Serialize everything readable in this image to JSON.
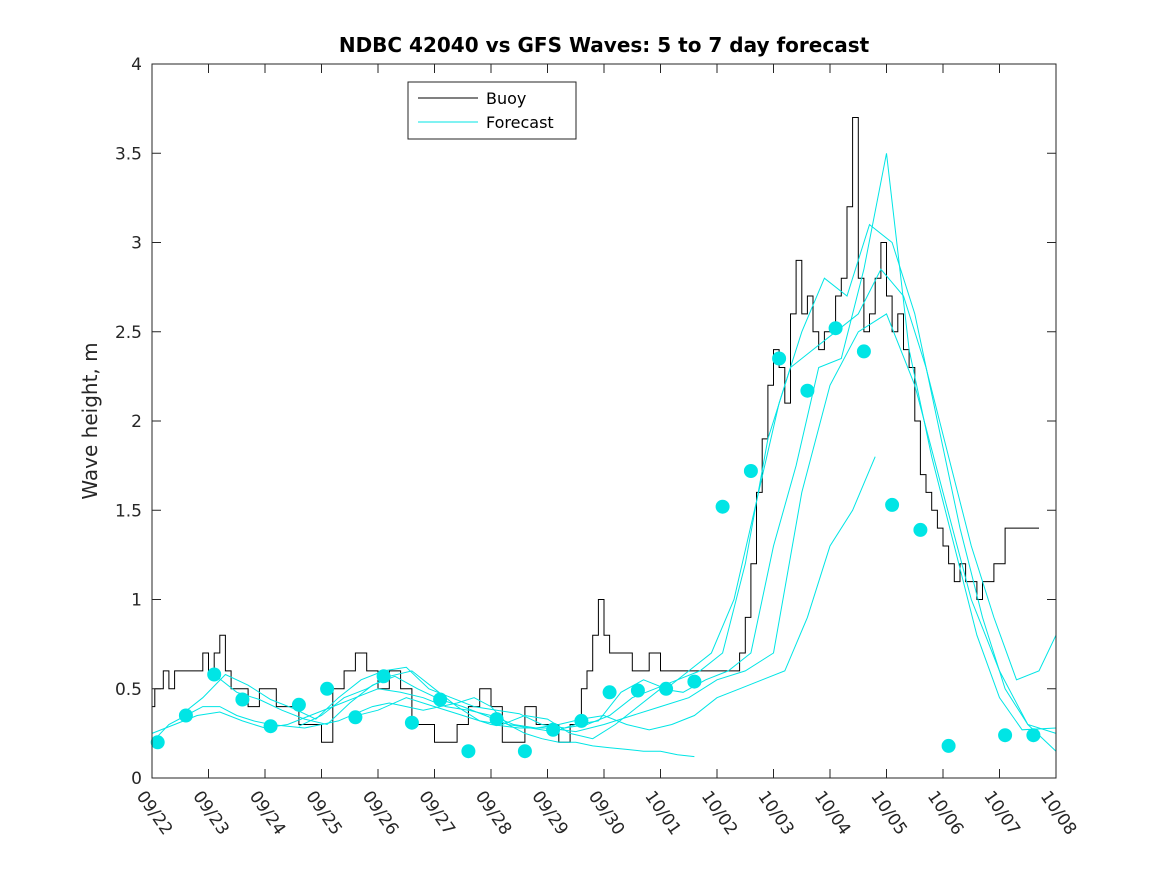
{
  "chart_data": {
    "type": "line",
    "title": "NDBC 42040 vs GFS Waves: 5 to 7 day forecast",
    "xlabel": "",
    "ylabel": "Wave height, m",
    "xlim": [
      0,
      16
    ],
    "ylim": [
      0,
      4
    ],
    "grid": false,
    "legend_position": "top-left",
    "x_tick_values": [
      0,
      1,
      2,
      3,
      4,
      5,
      6,
      7,
      8,
      9,
      10,
      11,
      12,
      13,
      14,
      15,
      16
    ],
    "x_tick_labels": [
      "09/22",
      "09/23",
      "09/24",
      "09/25",
      "09/26",
      "09/27",
      "09/28",
      "09/29",
      "09/30",
      "10/01",
      "10/02",
      "10/03",
      "10/04",
      "10/05",
      "10/06",
      "10/07",
      "10/08"
    ],
    "y_tick_values": [
      0,
      0.5,
      1,
      1.5,
      2,
      2.5,
      3,
      3.5,
      4
    ],
    "y_tick_labels": [
      "0",
      "0.5",
      "1",
      "1.5",
      "2",
      "2.5",
      "3",
      "3.5",
      "4"
    ],
    "x_units": "days since 09/22",
    "legend": [
      {
        "label": "Buoy",
        "color": "#000000"
      },
      {
        "label": "Forecast",
        "color": "#00e5e5"
      }
    ],
    "colors": {
      "buoy": "#000000",
      "forecast": "#00e5e5",
      "marker": "#00e5e5"
    },
    "series": [
      {
        "name": "Buoy",
        "style": "step",
        "x": [
          0,
          0.05,
          0.1,
          0.2,
          0.3,
          0.4,
          0.5,
          0.6,
          0.7,
          0.8,
          0.9,
          1.0,
          1.1,
          1.2,
          1.3,
          1.4,
          1.5,
          1.6,
          1.7,
          1.8,
          1.9,
          2.0,
          2.2,
          2.4,
          2.6,
          2.8,
          3.0,
          3.2,
          3.4,
          3.6,
          3.8,
          4.0,
          4.2,
          4.4,
          4.6,
          4.8,
          5.0,
          5.2,
          5.4,
          5.6,
          5.8,
          6.0,
          6.2,
          6.4,
          6.6,
          6.8,
          7.0,
          7.2,
          7.4,
          7.6,
          7.7,
          7.8,
          7.9,
          8.0,
          8.1,
          8.2,
          8.3,
          8.4,
          8.5,
          8.6,
          8.8,
          9.0,
          9.2,
          9.4,
          9.6,
          9.8,
          10.0,
          10.2,
          10.4,
          10.5,
          10.6,
          10.7,
          10.8,
          10.9,
          11.0,
          11.1,
          11.2,
          11.3,
          11.4,
          11.5,
          11.6,
          11.7,
          11.8,
          11.9,
          12.0,
          12.1,
          12.2,
          12.3,
          12.4,
          12.5,
          12.6,
          12.7,
          12.8,
          12.9,
          13.0,
          13.1,
          13.2,
          13.3,
          13.4,
          13.5,
          13.6,
          13.7,
          13.8,
          13.9,
          14.0,
          14.1,
          14.2,
          14.3,
          14.4,
          14.5,
          14.6,
          14.7,
          14.8,
          14.9,
          15.0,
          15.1,
          15.2,
          15.3,
          15.4,
          15.5,
          15.6,
          15.7
        ],
        "y": [
          0.4,
          0.5,
          0.5,
          0.6,
          0.5,
          0.6,
          0.6,
          0.6,
          0.6,
          0.6,
          0.7,
          0.6,
          0.7,
          0.8,
          0.6,
          0.5,
          0.5,
          0.5,
          0.4,
          0.4,
          0.5,
          0.5,
          0.4,
          0.4,
          0.3,
          0.3,
          0.2,
          0.5,
          0.6,
          0.7,
          0.6,
          0.5,
          0.6,
          0.5,
          0.3,
          0.3,
          0.2,
          0.2,
          0.3,
          0.4,
          0.5,
          0.4,
          0.2,
          0.2,
          0.4,
          0.3,
          0.3,
          0.2,
          0.3,
          0.5,
          0.6,
          0.8,
          1.0,
          0.8,
          0.7,
          0.7,
          0.7,
          0.7,
          0.6,
          0.6,
          0.7,
          0.6,
          0.6,
          0.6,
          0.6,
          0.6,
          0.6,
          0.6,
          0.7,
          0.9,
          1.2,
          1.6,
          1.9,
          2.2,
          2.4,
          2.3,
          2.1,
          2.6,
          2.9,
          2.6,
          2.7,
          2.5,
          2.4,
          2.5,
          2.5,
          2.7,
          2.8,
          3.2,
          3.7,
          2.8,
          2.5,
          2.6,
          2.8,
          3.0,
          2.7,
          2.5,
          2.6,
          2.4,
          2.3,
          2.0,
          1.7,
          1.6,
          1.5,
          1.4,
          1.3,
          1.2,
          1.1,
          1.2,
          1.1,
          1.1,
          1.0,
          1.1,
          1.1,
          1.2,
          1.2,
          1.4,
          1.4,
          1.4,
          1.4,
          1.4,
          1.4,
          1.4
        ]
      },
      {
        "name": "Forecast run 1",
        "x": [
          0,
          0.3,
          0.6,
          0.9,
          1.2,
          1.5,
          1.8,
          2.1,
          2.4,
          2.7,
          3.0,
          3.3,
          3.6,
          3.9,
          4.2,
          4.5,
          4.8,
          5.1,
          5.4,
          5.7,
          6.0,
          6.3,
          6.6,
          6.9,
          7.2,
          7.5,
          7.8,
          8.1,
          8.4,
          8.7,
          9.0,
          9.3,
          9.6
        ],
        "y": [
          0.2,
          0.3,
          0.35,
          0.4,
          0.4,
          0.35,
          0.32,
          0.3,
          0.29,
          0.28,
          0.3,
          0.32,
          0.36,
          0.4,
          0.42,
          0.4,
          0.38,
          0.4,
          0.42,
          0.45,
          0.4,
          0.3,
          0.25,
          0.22,
          0.2,
          0.2,
          0.18,
          0.17,
          0.16,
          0.15,
          0.15,
          0.13,
          0.12
        ]
      },
      {
        "name": "Forecast run 2",
        "x": [
          0,
          0.4,
          0.8,
          1.2,
          1.6,
          2.0,
          2.4,
          2.8,
          3.2,
          3.6,
          4.0,
          4.4,
          4.8,
          5.2,
          5.6,
          6.0,
          6.4,
          6.8,
          7.2,
          7.6,
          8.0,
          8.4,
          8.8,
          9.2,
          9.6,
          10.0,
          10.4,
          10.8,
          11.2,
          11.6,
          12.0,
          12.4,
          12.8
        ],
        "y": [
          0.25,
          0.3,
          0.35,
          0.37,
          0.32,
          0.28,
          0.3,
          0.35,
          0.4,
          0.45,
          0.5,
          0.48,
          0.45,
          0.4,
          0.38,
          0.35,
          0.3,
          0.28,
          0.3,
          0.33,
          0.35,
          0.3,
          0.27,
          0.3,
          0.35,
          0.45,
          0.5,
          0.55,
          0.6,
          0.9,
          1.3,
          1.5,
          1.8
        ]
      },
      {
        "name": "Forecast run 3",
        "x": [
          0.5,
          0.9,
          1.3,
          1.7,
          2.1,
          2.5,
          2.9,
          3.3,
          3.7,
          4.1,
          4.5,
          4.9,
          5.3,
          5.7,
          6.1,
          6.5,
          6.9,
          7.3,
          7.7,
          8.1,
          8.5,
          8.9,
          9.3,
          9.7,
          10.1,
          10.5,
          10.9,
          11.3,
          11.7,
          12.1,
          12.5,
          12.9,
          13.3,
          13.7,
          14.1,
          14.5,
          14.9,
          15.3,
          15.7,
          16.0
        ],
        "y": [
          0.35,
          0.45,
          0.58,
          0.52,
          0.44,
          0.39,
          0.33,
          0.45,
          0.55,
          0.6,
          0.62,
          0.5,
          0.45,
          0.4,
          0.38,
          0.36,
          0.3,
          0.28,
          0.3,
          0.35,
          0.45,
          0.5,
          0.55,
          0.6,
          0.7,
          1.2,
          1.9,
          2.3,
          2.4,
          2.5,
          2.6,
          2.85,
          2.7,
          2.3,
          1.8,
          1.3,
          0.9,
          0.55,
          0.6,
          0.8
        ]
      },
      {
        "name": "Forecast run 4",
        "x": [
          1.1,
          1.5,
          1.9,
          2.3,
          2.7,
          3.1,
          3.5,
          3.9,
          4.3,
          4.7,
          5.1,
          5.5,
          5.9,
          6.3,
          6.7,
          7.1,
          7.5,
          7.9,
          8.3,
          8.7,
          9.1,
          9.5,
          9.9,
          10.3,
          10.7,
          11.1,
          11.5,
          11.9,
          12.3,
          12.7,
          13.1,
          13.5,
          13.9,
          14.3,
          14.7,
          15.1,
          15.5,
          16.0
        ],
        "y": [
          0.58,
          0.48,
          0.44,
          0.38,
          0.33,
          0.3,
          0.42,
          0.52,
          0.57,
          0.5,
          0.44,
          0.4,
          0.35,
          0.3,
          0.28,
          0.26,
          0.3,
          0.32,
          0.48,
          0.55,
          0.5,
          0.6,
          0.7,
          1.0,
          1.55,
          2.1,
          2.5,
          2.8,
          2.7,
          3.1,
          3.0,
          2.6,
          2.0,
          1.4,
          0.9,
          0.5,
          0.3,
          0.15
        ]
      },
      {
        "name": "Forecast run 5",
        "x": [
          2.6,
          3.0,
          3.4,
          3.8,
          4.2,
          4.6,
          5.0,
          5.4,
          5.8,
          6.2,
          6.6,
          7.0,
          7.4,
          7.8,
          8.2,
          8.6,
          9.0,
          9.4,
          9.8,
          10.2,
          10.6,
          11.0,
          11.4,
          11.8,
          12.2,
          12.6,
          13.0,
          13.4,
          13.8,
          14.2,
          14.6,
          15.0,
          15.4,
          16.0
        ],
        "y": [
          0.29,
          0.35,
          0.45,
          0.5,
          0.57,
          0.6,
          0.5,
          0.4,
          0.32,
          0.3,
          0.35,
          0.33,
          0.25,
          0.22,
          0.3,
          0.4,
          0.5,
          0.48,
          0.55,
          0.6,
          0.7,
          1.3,
          1.75,
          2.3,
          2.35,
          2.85,
          3.5,
          2.4,
          1.8,
          1.3,
          0.8,
          0.45,
          0.27,
          0.28
        ]
      },
      {
        "name": "Forecast run 6",
        "x": [
          3.5,
          4.0,
          4.5,
          5.0,
          5.5,
          6.0,
          6.5,
          7.0,
          7.5,
          8.0,
          8.5,
          9.0,
          9.5,
          10.0,
          10.5,
          11.0,
          11.5,
          12.0,
          12.5,
          13.0,
          13.5,
          14.0,
          14.5,
          15.0,
          15.5,
          16.0
        ],
        "y": [
          0.34,
          0.38,
          0.45,
          0.4,
          0.35,
          0.3,
          0.28,
          0.28,
          0.26,
          0.3,
          0.35,
          0.4,
          0.45,
          0.55,
          0.6,
          0.7,
          1.6,
          2.2,
          2.5,
          2.6,
          2.2,
          1.6,
          1.0,
          0.6,
          0.3,
          0.25
        ]
      }
    ],
    "markers": {
      "name": "Forecast markers",
      "x": [
        0.1,
        0.6,
        1.1,
        1.6,
        2.1,
        2.6,
        3.1,
        3.6,
        4.1,
        4.6,
        5.1,
        5.6,
        6.1,
        6.6,
        7.1,
        7.6,
        8.1,
        8.6,
        9.1,
        9.6,
        10.1,
        10.6,
        11.1,
        11.6,
        12.1,
        12.6,
        13.1,
        13.6,
        14.1,
        15.1,
        15.6
      ],
      "y": [
        0.2,
        0.35,
        0.58,
        0.44,
        0.29,
        0.41,
        0.5,
        0.34,
        0.57,
        0.31,
        0.44,
        0.15,
        0.33,
        0.15,
        0.27,
        0.32,
        0.48,
        0.49,
        0.5,
        0.54,
        1.52,
        1.72,
        2.35,
        2.17,
        2.52,
        2.39,
        1.53,
        1.39,
        0.18,
        0.24,
        0.24
      ]
    }
  }
}
